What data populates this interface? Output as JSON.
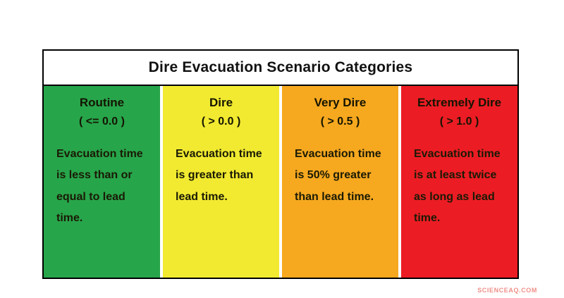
{
  "title": "Dire Evacuation Scenario Categories",
  "watermark": "SCIENCEAQ.COM",
  "colors": {
    "border": "#000000",
    "routine_green": "#27a54b",
    "dire_yellow": "#f1ea30",
    "very_dire_orange": "#f6a81f",
    "extremely_dire_red": "#ec1c24"
  },
  "categories": [
    {
      "name": "Routine",
      "threshold": "( <= 0.0 )",
      "description": "Evacuation time is less than or equal to lead time.",
      "color": "#27a54b"
    },
    {
      "name": "Dire",
      "threshold": "( > 0.0 )",
      "description": "Evacuation time is greater than lead time.",
      "color": "#f1ea30"
    },
    {
      "name": "Very Dire",
      "threshold": "( > 0.5 )",
      "description": "Evacuation time is 50% greater than lead time.",
      "color": "#f6a81f"
    },
    {
      "name": "Extremely Dire",
      "threshold": "( > 1.0 )",
      "description": "Evacuation time is at least twice as long as lead time.",
      "color": "#ec1c24"
    }
  ]
}
